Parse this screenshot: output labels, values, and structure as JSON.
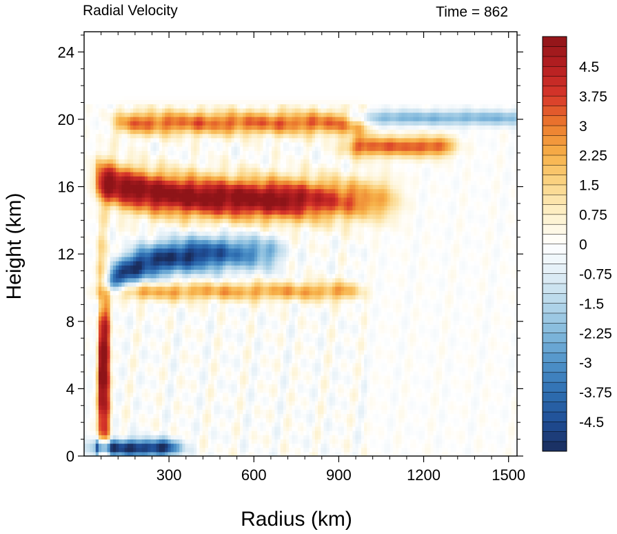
{
  "chart_data": {
    "type": "heatmap",
    "title_left": "Radial Velocity",
    "title_right": "Time = 862",
    "xlabel": "Radius (km)",
    "ylabel": "Height (km)",
    "xlim": [
      0,
      1530
    ],
    "ylim": [
      0,
      25.2
    ],
    "xticks": [
      300,
      600,
      900,
      1200,
      1500
    ],
    "yticks": [
      0,
      4,
      8,
      12,
      16,
      20,
      24
    ],
    "colorbar": {
      "vmin": -5.25,
      "vmax": 5.25,
      "step": 0.25,
      "labels": [
        "4.5",
        "3.75",
        "3",
        "2.25",
        "1.5",
        "0.75",
        "0",
        "-0.75",
        "-1.5",
        "-2.25",
        "-3",
        "-3.75",
        "-4.5"
      ],
      "label_values": [
        4.5,
        3.75,
        3,
        2.25,
        1.5,
        0.75,
        0,
        -0.75,
        -1.5,
        -2.25,
        -3,
        -3.75,
        -4.5
      ],
      "palette": [
        "#1a2c5b",
        "#1f4e96",
        "#2f6fb2",
        "#4f93c9",
        "#82b9dc",
        "#b6d7ea",
        "#e1eef6",
        "#ffffff",
        "#fdf1cc",
        "#fbd78a",
        "#f7b24a",
        "#ec7d2e",
        "#d8372a",
        "#b51f22",
        "#8f1418"
      ]
    },
    "features": [
      {
        "name": "upper-outflow",
        "r0": 90,
        "r1": 1060,
        "z": 15.2,
        "dz": 1.2,
        "v": 5.5
      },
      {
        "name": "upper-inflow",
        "r0": 120,
        "r1": 650,
        "z": 12.1,
        "dz": 1.0,
        "v": -5.0
      },
      {
        "name": "mid-outflow-band",
        "r0": 90,
        "r1": 920,
        "z": 9.8,
        "dz": 0.55,
        "v": 2.4
      },
      {
        "name": "lower-inflow",
        "r0": 50,
        "r1": 280,
        "z": 0.5,
        "dz": 0.5,
        "v": -5.2
      },
      {
        "name": "eyewall-updraft-outflow",
        "r0": 60,
        "r1": 80,
        "z": 5.0,
        "dz": 6.0,
        "v": 5.2
      },
      {
        "name": "tropopause-outflow",
        "r0": 170,
        "r1": 950,
        "z": 19.8,
        "dz": 0.7,
        "v": 3.2
      },
      {
        "name": "tropopause-outflow-outer",
        "r0": 980,
        "r1": 1250,
        "z": 18.4,
        "dz": 0.6,
        "v": 3.4
      },
      {
        "name": "tropopause-inflow-outer",
        "r0": 980,
        "r1": 1500,
        "z": 20.1,
        "dz": 0.45,
        "v": -2.3
      }
    ]
  }
}
